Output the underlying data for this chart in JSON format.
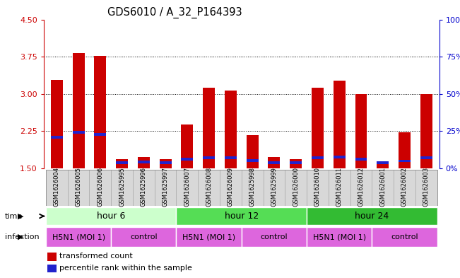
{
  "title": "GDS6010 / A_32_P164393",
  "samples": [
    "GSM1626004",
    "GSM1626005",
    "GSM1626006",
    "GSM1625995",
    "GSM1625996",
    "GSM1625997",
    "GSM1626007",
    "GSM1626008",
    "GSM1626009",
    "GSM1625998",
    "GSM1625999",
    "GSM1626000",
    "GSM1626010",
    "GSM1626011",
    "GSM1626012",
    "GSM1626001",
    "GSM1626002",
    "GSM1626003"
  ],
  "red_values": [
    3.28,
    3.82,
    3.76,
    1.68,
    1.72,
    1.68,
    2.38,
    3.13,
    3.07,
    2.17,
    1.72,
    1.68,
    3.12,
    3.27,
    2.99,
    1.63,
    2.22,
    2.99
  ],
  "blue_pos": [
    2.1,
    2.2,
    2.15,
    1.58,
    1.6,
    1.58,
    1.65,
    1.68,
    1.68,
    1.63,
    1.58,
    1.58,
    1.68,
    1.7,
    1.65,
    1.58,
    1.62,
    1.68
  ],
  "ymin": 1.5,
  "ymax": 4.5,
  "yticks": [
    1.5,
    2.25,
    3.0,
    3.75,
    4.5
  ],
  "right_yticks_vals": [
    0,
    25,
    50,
    75,
    100
  ],
  "right_ytick_labels": [
    "0%",
    "25%",
    "50%",
    "75%",
    "100%"
  ],
  "bar_color": "#cc0000",
  "blue_color": "#2222cc",
  "time_labels": [
    "hour 6",
    "hour 12",
    "hour 24"
  ],
  "time_ranges": [
    [
      0,
      5
    ],
    [
      6,
      11
    ],
    [
      12,
      17
    ]
  ],
  "time_bg_colors": [
    "#ccffcc",
    "#55dd55",
    "#33bb33"
  ],
  "infection_labels": [
    "H5N1 (MOI 1)",
    "control",
    "H5N1 (MOI 1)",
    "control",
    "H5N1 (MOI 1)",
    "control"
  ],
  "infection_ranges": [
    [
      0,
      2
    ],
    [
      3,
      5
    ],
    [
      6,
      8
    ],
    [
      9,
      11
    ],
    [
      12,
      14
    ],
    [
      15,
      17
    ]
  ],
  "infection_bg_color": "#dd66dd",
  "right_axis_color": "#0000cc",
  "tick_label_color": "#cc0000",
  "grid_dotted_vals": [
    2.25,
    3.0,
    3.75
  ]
}
